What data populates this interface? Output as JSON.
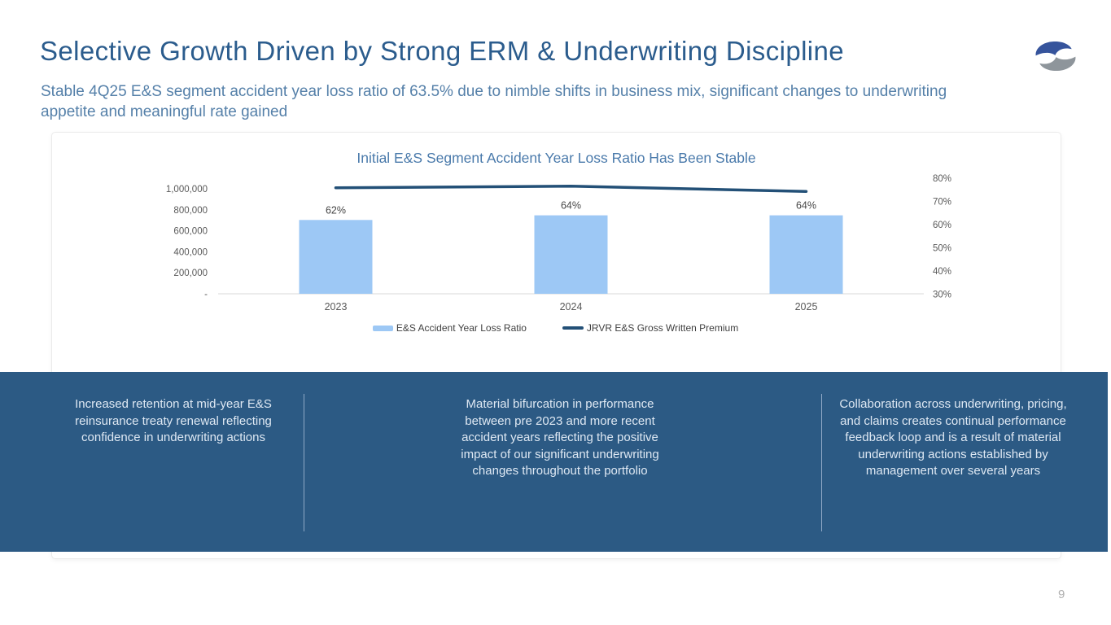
{
  "header": {
    "title": "Selective Growth Driven by Strong ERM & Underwriting Discipline",
    "subtitle": "Stable 4Q25 E&S segment accident year loss ratio of 63.5% due to nimble shifts in business mix, significant changes to underwriting appetite and meaningful rate gained"
  },
  "logo": {
    "name": "james-river-group-logo",
    "blue_color": "#36549C",
    "gray_color": "#8E959B"
  },
  "chart_data": {
    "type": "combo",
    "title": "Initial E&S Segment Accident Year Loss Ratio Has Been Stable",
    "categories": [
      "2023",
      "2024",
      "2025"
    ],
    "series": [
      {
        "name": "E&S Accident Year Loss Ratio",
        "type": "bar",
        "axis": "right",
        "values": [
          62,
          64,
          64
        ],
        "labels": [
          "62%",
          "64%",
          "64%"
        ],
        "color": "#9DC8F5"
      },
      {
        "name": "JRVR E&S Gross Written Premium",
        "type": "line",
        "axis": "left",
        "values": [
          1010000,
          1025000,
          975000
        ],
        "color": "#235077"
      }
    ],
    "left_axis": {
      "tick_labels": [
        "1,000,000",
        "800,000",
        "600,000",
        "400,000",
        "200,000",
        "-"
      ],
      "tick_values": [
        1000000,
        800000,
        600000,
        400000,
        200000,
        0
      ],
      "range": [
        0,
        1000000
      ]
    },
    "right_axis": {
      "tick_labels": [
        "80%",
        "70%",
        "60%",
        "50%",
        "40%",
        "30%"
      ],
      "tick_values": [
        80,
        70,
        60,
        50,
        40,
        30
      ],
      "range": [
        30,
        80
      ]
    },
    "grid": false,
    "legend_position": "bottom"
  },
  "callouts": [
    {
      "text": "Increased retention at mid-year E&S reinsurance treaty renewal reflecting confidence in underwriting actions"
    },
    {
      "text": "Material bifurcation in performance between pre 2023 and more recent accident years reflecting the positive impact of our significant underwriting changes throughout the portfolio"
    },
    {
      "text": "Collaboration across underwriting, pricing, and claims creates continual performance feedback loop and is a result of material underwriting actions established by management over several years"
    }
  ],
  "footer": {
    "page_number": "9"
  },
  "colors": {
    "title_text": "#2B5C8D",
    "subtitle_text": "#5580A9",
    "chart_title_text": "#4A7AAB",
    "axis_text": "#595959",
    "band_background": "#2C5A84",
    "band_text": "#DEE8F3",
    "band_divider": "#8FA9C6",
    "bar_fill": "#9DC8F5",
    "line_stroke": "#235077",
    "card_border": "#EBEBEB",
    "page_number_text": "#AFAFAF"
  }
}
